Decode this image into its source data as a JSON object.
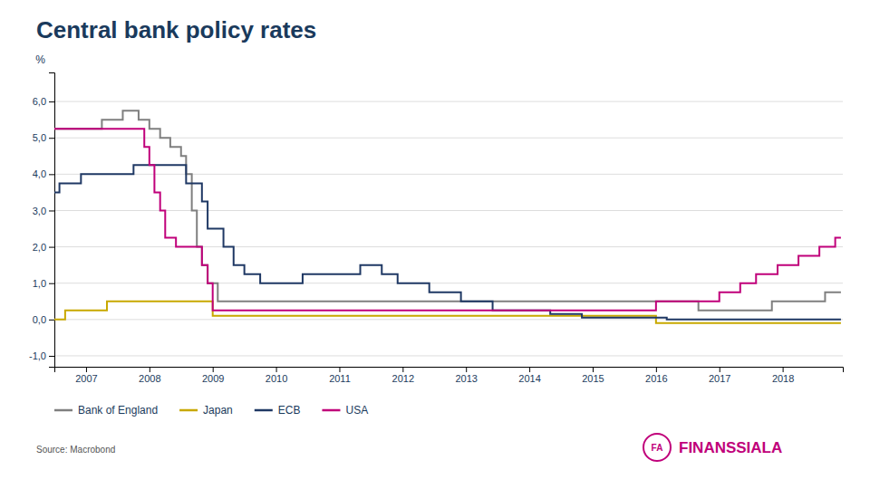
{
  "chart_data": {
    "type": "step",
    "title": "Central bank policy rates",
    "ylabel": "%",
    "annotations": [
      "Source: Macrobond",
      "FA",
      "FINANSSIALA"
    ],
    "xlim": [
      2006.5,
      2018.95
    ],
    "xticks": [
      2007,
      2008,
      2009,
      2010,
      2011,
      2012,
      2013,
      2014,
      2015,
      2016,
      2017,
      2018
    ],
    "ylim": [
      -1.3,
      6.8
    ],
    "yticks": [
      {
        "value": -1.0,
        "label": "-1,0"
      },
      {
        "value": 0.0,
        "label": "0,0"
      },
      {
        "value": 1.0,
        "label": "1,0"
      },
      {
        "value": 2.0,
        "label": "2,0"
      },
      {
        "value": 3.0,
        "label": "3,0"
      },
      {
        "value": 4.0,
        "label": "4,0"
      },
      {
        "value": 5.0,
        "label": "5,0"
      },
      {
        "value": 6.0,
        "label": "6,0"
      }
    ],
    "grid": true,
    "legend": "bottom",
    "series": [
      {
        "name": "Bank of England",
        "color": "#7f7f7f",
        "x": [
          2006.5,
          2007.08,
          2007.25,
          2007.58,
          2007.83,
          2008.0,
          2008.17,
          2008.33,
          2008.5,
          2008.58,
          2008.67,
          2008.75,
          2008.83,
          2008.92,
          2009.08,
          2016.58,
          2016.67,
          2017.75,
          2017.83,
          2018.58,
          2018.67,
          2018.92
        ],
        "values": [
          5.25,
          5.25,
          5.5,
          5.75,
          5.5,
          5.25,
          5.0,
          4.75,
          4.5,
          4.0,
          3.0,
          2.0,
          1.5,
          1.0,
          0.5,
          0.5,
          0.25,
          0.25,
          0.5,
          0.5,
          0.75,
          0.75
        ]
      },
      {
        "name": "Japan",
        "color": "#c8a800",
        "x": [
          2006.5,
          2006.67,
          2007.33,
          2008.92,
          2009.0,
          2015.92,
          2016.0,
          2018.92
        ],
        "values": [
          0.0,
          0.25,
          0.5,
          0.5,
          0.1,
          0.1,
          -0.1,
          -0.1
        ]
      },
      {
        "name": "ECB",
        "color": "#1f3864",
        "x": [
          2006.5,
          2006.58,
          2006.92,
          2007.67,
          2007.75,
          2008.5,
          2008.58,
          2008.83,
          2008.92,
          2009.17,
          2009.33,
          2009.5,
          2009.75,
          2010.33,
          2010.42,
          2011.17,
          2011.33,
          2011.58,
          2011.67,
          2011.92,
          2012.42,
          2012.92,
          2013.42,
          2014.25,
          2014.33,
          2014.75,
          2014.83,
          2015.83,
          2016.17,
          2018.92
        ],
        "values": [
          3.5,
          3.75,
          4.0,
          4.0,
          4.25,
          4.25,
          3.75,
          3.25,
          2.5,
          2.0,
          1.5,
          1.25,
          1.0,
          1.0,
          1.25,
          1.25,
          1.5,
          1.5,
          1.25,
          1.0,
          0.75,
          0.5,
          0.25,
          0.25,
          0.15,
          0.15,
          0.05,
          0.05,
          0.0,
          0.0
        ]
      },
      {
        "name": "USA",
        "color": "#c0007a",
        "x": [
          2006.5,
          2007.83,
          2007.92,
          2008.0,
          2008.08,
          2008.17,
          2008.25,
          2008.42,
          2008.83,
          2008.92,
          2009.0,
          2015.92,
          2016.0,
          2016.92,
          2017.0,
          2017.25,
          2017.33,
          2017.5,
          2017.58,
          2017.83,
          2017.92,
          2018.17,
          2018.25,
          2018.5,
          2018.58,
          2018.75,
          2018.83,
          2018.92
        ],
        "values": [
          5.25,
          5.25,
          4.75,
          4.25,
          3.5,
          3.0,
          2.25,
          2.0,
          1.5,
          1.0,
          0.25,
          0.25,
          0.5,
          0.5,
          0.75,
          0.75,
          1.0,
          1.0,
          1.25,
          1.25,
          1.5,
          1.5,
          1.75,
          1.75,
          2.0,
          2.0,
          2.25,
          2.25
        ]
      }
    ]
  }
}
